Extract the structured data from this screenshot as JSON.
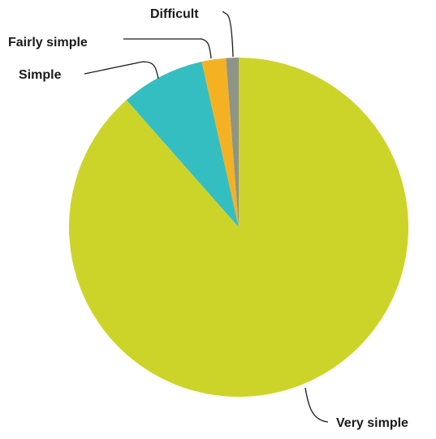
{
  "chart_data": {
    "type": "pie",
    "start": "12 o'clock",
    "direction": "clockwise",
    "categories": [
      "Very simple",
      "Simple",
      "Fairly simple",
      "Difficult"
    ],
    "values": [
      88.5,
      8.0,
      2.3,
      1.2
    ],
    "unit": "%",
    "colors": [
      "#CDD429",
      "#35BEC1",
      "#F4B223",
      "#8E9587"
    ],
    "labels": [
      {
        "text": "Very simple"
      },
      {
        "text": "Simple"
      },
      {
        "text": "Fairly simple"
      },
      {
        "text": "Difficult"
      }
    ],
    "legend": "none",
    "title": ""
  }
}
